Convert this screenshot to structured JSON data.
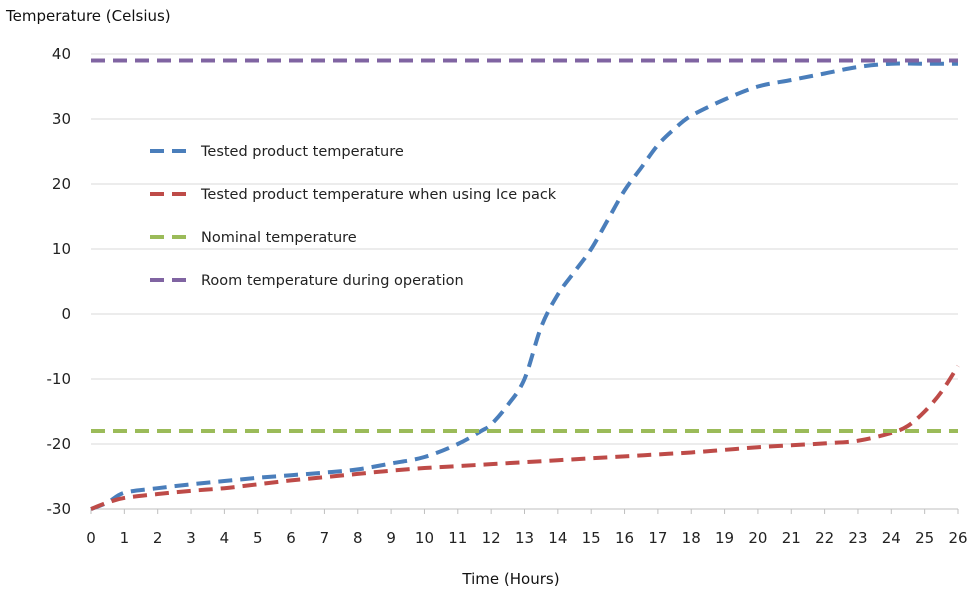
{
  "chart_data": {
    "type": "line",
    "title": "",
    "ylabel": "Temperature (Celsius)",
    "xlabel": "Time (Hours)",
    "xlim": [
      0,
      26
    ],
    "ylim": [
      -30,
      40
    ],
    "x_ticks": [
      "0",
      "1",
      "2",
      "3",
      "4",
      "5",
      "6",
      "7",
      "8",
      "9",
      "10",
      "11",
      "12",
      "13",
      "14",
      "15",
      "16",
      "17",
      "18",
      "19",
      "20",
      "21",
      "22",
      "23",
      "24",
      "25",
      "26"
    ],
    "y_ticks": [
      "40",
      "30",
      "20",
      "10",
      "0",
      "-10",
      "-20",
      "-30"
    ],
    "grid": "horizontal",
    "legend_position": "upper-left inside plot",
    "series": [
      {
        "name": "Tested product temperature",
        "color": "#4A7EBB",
        "style": "dashed",
        "points": [
          [
            0,
            -30
          ],
          [
            0.5,
            -29
          ],
          [
            1,
            -27.5
          ],
          [
            2,
            -26.8
          ],
          [
            3,
            -26.2
          ],
          [
            4,
            -25.7
          ],
          [
            5,
            -25.2
          ],
          [
            6,
            -24.8
          ],
          [
            7,
            -24.4
          ],
          [
            8,
            -23.9
          ],
          [
            9,
            -23
          ],
          [
            10,
            -22
          ],
          [
            11,
            -20
          ],
          [
            11.7,
            -18
          ],
          [
            12,
            -17
          ],
          [
            12.5,
            -14
          ],
          [
            13,
            -10
          ],
          [
            13.5,
            -2
          ],
          [
            14,
            3
          ],
          [
            14.5,
            6.5
          ],
          [
            15,
            10
          ],
          [
            15.5,
            14.5
          ],
          [
            16,
            19
          ],
          [
            16.5,
            22.5
          ],
          [
            17,
            26
          ],
          [
            17.5,
            28.5
          ],
          [
            18,
            30.5
          ],
          [
            19,
            33
          ],
          [
            20,
            35
          ],
          [
            21,
            36
          ],
          [
            22,
            37
          ],
          [
            23,
            38
          ],
          [
            24,
            38.5
          ],
          [
            25,
            38.5
          ],
          [
            26,
            38.5
          ]
        ]
      },
      {
        "name": "Tested product temperature when using Ice pack",
        "color": "#BE4B48",
        "style": "dashed",
        "points": [
          [
            0,
            -30
          ],
          [
            0.5,
            -29
          ],
          [
            1,
            -28.3
          ],
          [
            2,
            -27.7
          ],
          [
            3,
            -27.2
          ],
          [
            4,
            -26.8
          ],
          [
            5,
            -26.2
          ],
          [
            6,
            -25.6
          ],
          [
            7,
            -25.1
          ],
          [
            8,
            -24.6
          ],
          [
            9,
            -24.1
          ],
          [
            10,
            -23.7
          ],
          [
            11,
            -23.4
          ],
          [
            12,
            -23.1
          ],
          [
            13,
            -22.8
          ],
          [
            14,
            -22.5
          ],
          [
            15,
            -22.2
          ],
          [
            16,
            -21.9
          ],
          [
            17,
            -21.6
          ],
          [
            18,
            -21.3
          ],
          [
            19,
            -20.9
          ],
          [
            20,
            -20.5
          ],
          [
            21,
            -20.2
          ],
          [
            22,
            -19.9
          ],
          [
            23,
            -19.5
          ],
          [
            24,
            -18.3
          ],
          [
            24.5,
            -17.2
          ],
          [
            25,
            -15
          ],
          [
            25.5,
            -12
          ],
          [
            26,
            -8
          ]
        ]
      },
      {
        "name": "Nominal temperature",
        "color": "#9BBB59",
        "style": "dashed",
        "points": [
          [
            0,
            -18
          ],
          [
            26,
            -18
          ]
        ]
      },
      {
        "name": "Room temperature during operation",
        "color": "#8064A2",
        "style": "dashed",
        "points": [
          [
            0,
            39
          ],
          [
            26,
            39
          ]
        ]
      }
    ]
  }
}
